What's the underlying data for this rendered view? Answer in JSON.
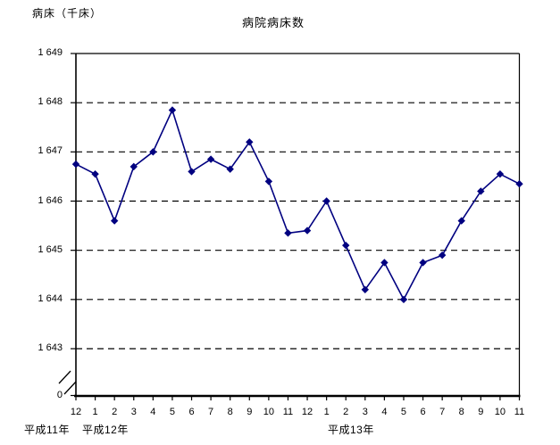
{
  "page": {
    "background_color": "#ffffff",
    "text_color": "#000000"
  },
  "chart_data": {
    "type": "line",
    "title": "病院病床数",
    "ylabel": "病床（千床）",
    "xlabel": "",
    "grid": "horizontal-dashed",
    "legend": "none",
    "axis_break_near_zero": true,
    "ylim_display": [
      1643,
      1649
    ],
    "y_ticks": [
      {
        "label": "1 649",
        "value": 1649
      },
      {
        "label": "1 648",
        "value": 1648
      },
      {
        "label": "1 647",
        "value": 1647
      },
      {
        "label": "1 646",
        "value": 1646
      },
      {
        "label": "1 645",
        "value": 1645
      },
      {
        "label": "1 644",
        "value": 1644
      },
      {
        "label": "1 643",
        "value": 1643
      },
      {
        "label": "0",
        "value": 0
      }
    ],
    "categories": [
      "12",
      "1",
      "2",
      "3",
      "4",
      "5",
      "6",
      "7",
      "8",
      "9",
      "10",
      "11",
      "12",
      "1",
      "2",
      "3",
      "4",
      "5",
      "6",
      "7",
      "8",
      "9",
      "10",
      "11"
    ],
    "era_labels": [
      {
        "label": "平成11年"
      },
      {
        "label": "平成12年"
      },
      {
        "label": "平成13年"
      }
    ],
    "series": [
      {
        "name": "病院病床数",
        "color": "#000080",
        "marker": "diamond",
        "values": [
          1646.75,
          1646.55,
          1645.6,
          1646.7,
          1647.0,
          1647.85,
          1646.6,
          1646.85,
          1646.65,
          1647.2,
          1646.4,
          1645.35,
          1645.4,
          1646.0,
          1645.1,
          1644.2,
          1644.75,
          1644.0,
          1644.75,
          1644.9,
          1645.6,
          1646.2,
          1646.55,
          1646.35
        ]
      }
    ],
    "axis_color": "#000000",
    "gridline_color": "#000000"
  }
}
